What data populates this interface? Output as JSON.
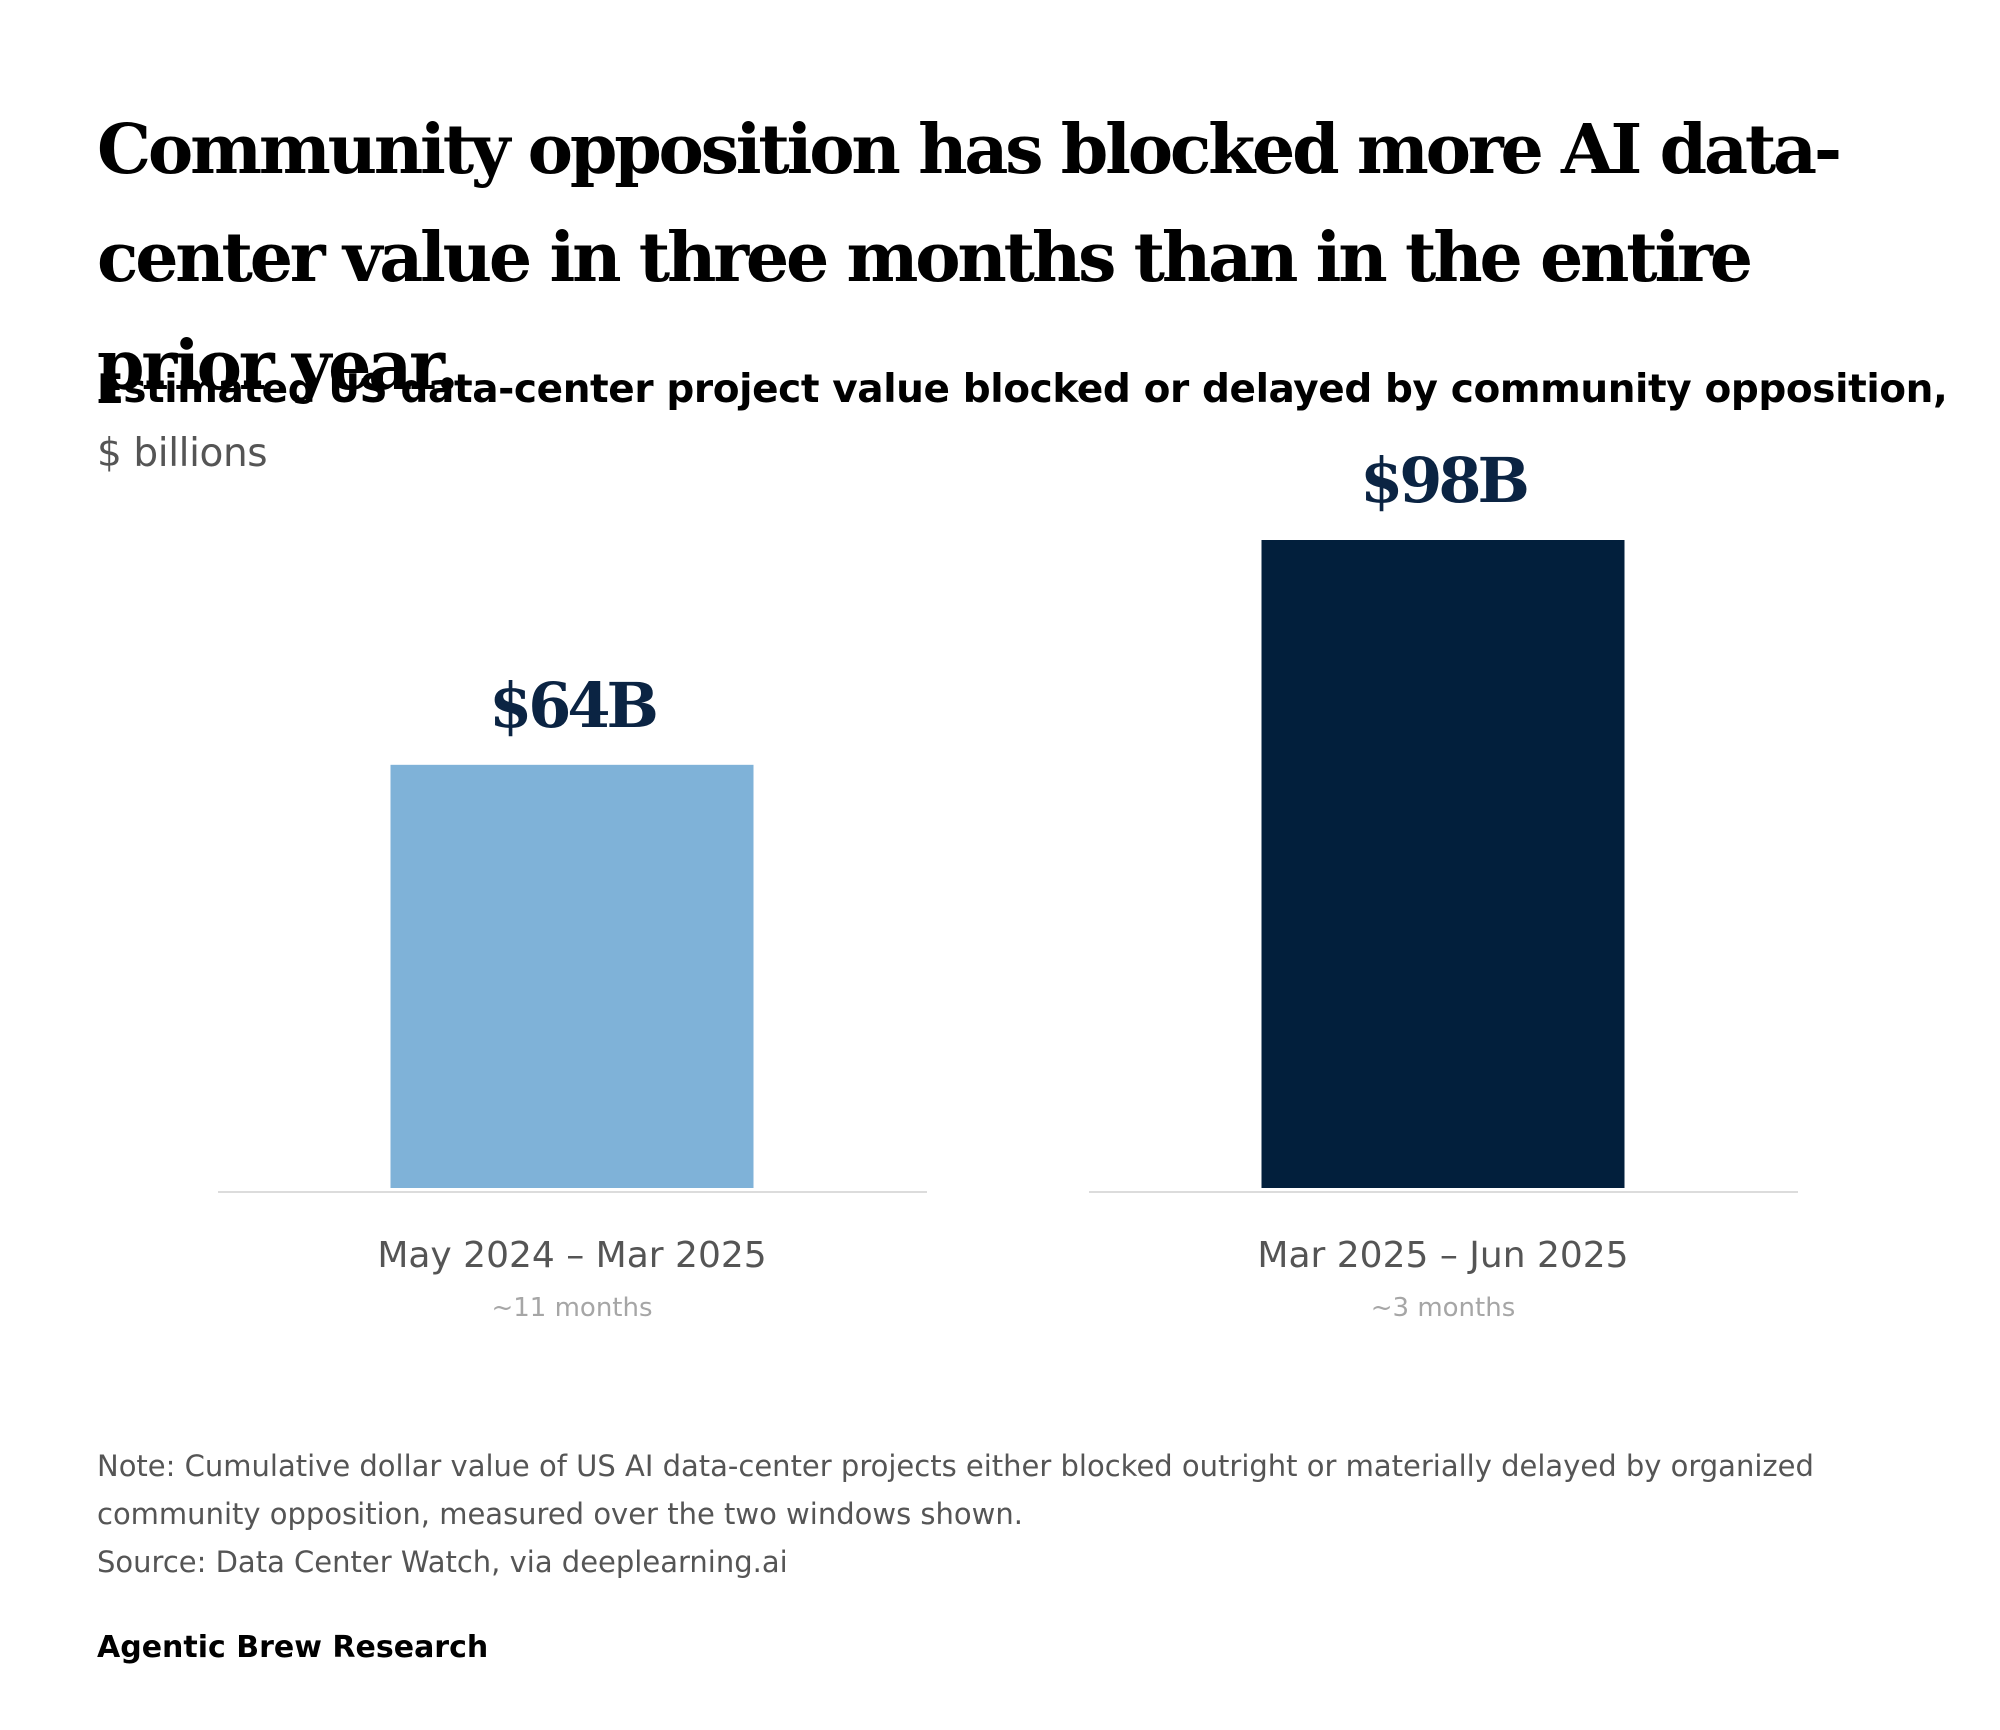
{
  "headline": "Community opposition has blocked more AI data-center value in three months than in the entire prior year.",
  "chart_data": {
    "type": "bar",
    "title": "Estimated US data-center project value blocked or delayed by community opposition,",
    "unit": "$ billions",
    "categories": [
      "May 2024 – Mar 2025",
      "Mar 2025 – Jun 2025"
    ],
    "category_notes": [
      "~11 months",
      "~3 months"
    ],
    "values": [
      64,
      98
    ],
    "value_labels": [
      "$64B",
      "$98B"
    ],
    "colors": [
      "#7fb2d8",
      "#021f3c"
    ],
    "label_color": "#0b2443",
    "baseline_color": "#d0d0d0",
    "ylim": [
      0,
      98
    ],
    "grid": false,
    "legend": "none"
  },
  "note": "Note: Cumulative dollar value of US AI data-center projects either blocked outright or materially delayed by organized community opposition, measured over the two windows shown.",
  "source": "Source: Data Center Watch, via deeplearning.ai",
  "brand": "Agentic Brew Research"
}
